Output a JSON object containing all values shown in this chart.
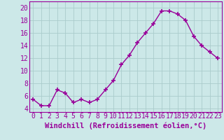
{
  "x": [
    0,
    1,
    2,
    3,
    4,
    5,
    6,
    7,
    8,
    9,
    10,
    11,
    12,
    13,
    14,
    15,
    16,
    17,
    18,
    19,
    20,
    21,
    22,
    23
  ],
  "y": [
    5.5,
    4.5,
    4.5,
    7.0,
    6.5,
    5.0,
    5.5,
    5.0,
    5.5,
    7.0,
    8.5,
    11.0,
    12.5,
    14.5,
    16.0,
    17.5,
    19.5,
    19.5,
    19.0,
    18.0,
    15.5,
    14.0,
    13.0,
    12.0
  ],
  "line_color": "#990099",
  "marker": "+",
  "marker_size": 5,
  "marker_lw": 1.2,
  "bg_color": "#cce8e8",
  "grid_color": "#aacccc",
  "xlabel": "Windchill (Refroidissement éolien,°C)",
  "xlabel_color": "#990099",
  "xlabel_fontsize": 7.5,
  "ytick_labels": [
    "4",
    "6",
    "8",
    "10",
    "12",
    "14",
    "16",
    "18",
    "20"
  ],
  "ytick_values": [
    4,
    6,
    8,
    10,
    12,
    14,
    16,
    18,
    20
  ],
  "xlim": [
    -0.5,
    23.5
  ],
  "ylim": [
    3.5,
    21.0
  ],
  "tick_fontsize": 7,
  "tick_color": "#990099",
  "line_width": 1.0,
  "spine_color": "#990099"
}
